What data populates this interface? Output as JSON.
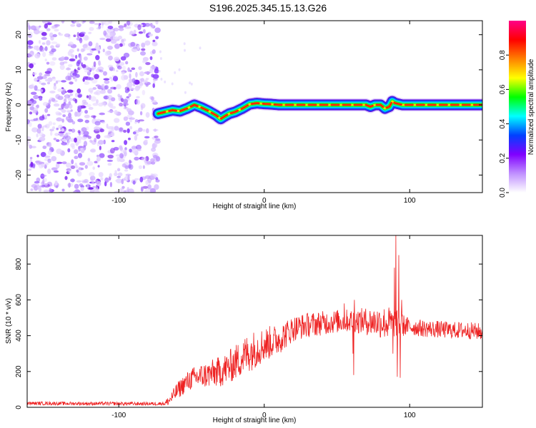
{
  "figure": {
    "title": "S196.2025.345.15.13.G26"
  },
  "chart_data": [
    {
      "type": "heatmap",
      "panel": "spectrogram",
      "title": "S196.2025.345.15.13.G26",
      "xlabel": "Height of straight line (km)",
      "ylabel": "Frequency (Hz)",
      "xlim": [
        -163,
        150
      ],
      "ylim": [
        -25,
        24
      ],
      "xticks": [
        -100,
        0,
        100
      ],
      "xtick_labels": [
        "-100",
        "0",
        "100"
      ],
      "yticks": [
        -20,
        -10,
        0,
        10,
        20
      ],
      "ytick_labels": [
        "-20",
        "-10",
        "0",
        "10",
        "20"
      ],
      "noise_region_x": [
        -163,
        -73
      ],
      "ridge": {
        "x": [
          -73,
          -68,
          -63,
          -58,
          -53,
          -48,
          -43,
          -38,
          -33,
          -30,
          -27,
          -24,
          -20,
          -15,
          -10,
          -5,
          0,
          5,
          10,
          20,
          30,
          40,
          50,
          60,
          70,
          73,
          76,
          80,
          83,
          86,
          88,
          90,
          95,
          100,
          110,
          120,
          130,
          140,
          150
        ],
        "freq": [
          -2.5,
          -2.0,
          -1.5,
          -1.8,
          -1.0,
          0.0,
          -0.8,
          -1.8,
          -3.0,
          -4.0,
          -3.2,
          -2.5,
          -2.0,
          -1.0,
          0.2,
          0.5,
          0.3,
          0.2,
          0.0,
          0.0,
          0.0,
          0.0,
          0.0,
          0.0,
          0.0,
          -0.5,
          0.0,
          0.0,
          -1.0,
          -0.5,
          1.0,
          0.5,
          0.0,
          0.0,
          0.0,
          0.0,
          0.0,
          0.0,
          0.0
        ]
      },
      "colorbar": {
        "label": "Normalized spectral amplitude",
        "range": [
          0.0,
          1.0
        ],
        "ticks": [
          0.0,
          0.2,
          0.4,
          0.6,
          0.8
        ],
        "tick_labels": [
          "0.0",
          "0.2",
          "0.4",
          "0.6",
          "0.8"
        ],
        "colors": [
          "#ffffff",
          "#c090ff",
          "#8000ff",
          "#0040ff",
          "#00ffff",
          "#00ff00",
          "#ffff00",
          "#ff8000",
          "#ff0000",
          "#ff0088"
        ]
      }
    },
    {
      "type": "line",
      "panel": "snr",
      "title": "",
      "xlabel": "Height of straight line (km)",
      "ylabel": "SNR (10 * v/v)",
      "xlim": [
        -163,
        150
      ],
      "ylim": [
        0,
        960
      ],
      "xticks": [
        -100,
        0,
        100
      ],
      "xtick_labels": [
        "-100",
        "0",
        "100"
      ],
      "yticks": [
        0,
        200,
        400,
        600,
        800
      ],
      "ytick_labels": [
        "0",
        "200",
        "400",
        "600",
        "800"
      ],
      "color": "#ee2222",
      "envelope": {
        "x": [
          -163,
          -150,
          -130,
          -110,
          -90,
          -75,
          -68,
          -65,
          -60,
          -55,
          -50,
          -45,
          -40,
          -35,
          -30,
          -25,
          -20,
          -15,
          -10,
          -5,
          0,
          5,
          10,
          15,
          20,
          25,
          30,
          40,
          50,
          60,
          70,
          80,
          85,
          88,
          91,
          94,
          97,
          100,
          110,
          120,
          130,
          140,
          150
        ],
        "y": [
          22,
          22,
          21,
          21,
          20,
          20,
          22,
          40,
          90,
          130,
          160,
          170,
          180,
          190,
          200,
          220,
          250,
          280,
          310,
          330,
          350,
          365,
          380,
          410,
          440,
          450,
          460,
          470,
          480,
          485,
          480,
          475,
          470,
          470,
          470,
          460,
          455,
          450,
          440,
          435,
          430,
          430,
          420
        ]
      },
      "noise_amplitude": {
        "x": [
          -163,
          -70,
          -60,
          -10,
          20,
          60,
          85,
          100,
          150
        ],
        "y": [
          6,
          6,
          30,
          70,
          45,
          40,
          60,
          30,
          30
        ]
      },
      "spikes": [
        {
          "x": 90.5,
          "y": 960
        },
        {
          "x": 91.5,
          "y": 170
        },
        {
          "x": 92.5,
          "y": 850
        },
        {
          "x": 93.5,
          "y": 165
        },
        {
          "x": 89.5,
          "y": 780
        },
        {
          "x": 94.5,
          "y": 600
        },
        {
          "x": 88.5,
          "y": 300
        },
        {
          "x": 62,
          "y": 600
        },
        {
          "x": 61,
          "y": 300
        },
        {
          "x": 55,
          "y": 580
        },
        {
          "x": 61.5,
          "y": 180
        }
      ]
    }
  ]
}
